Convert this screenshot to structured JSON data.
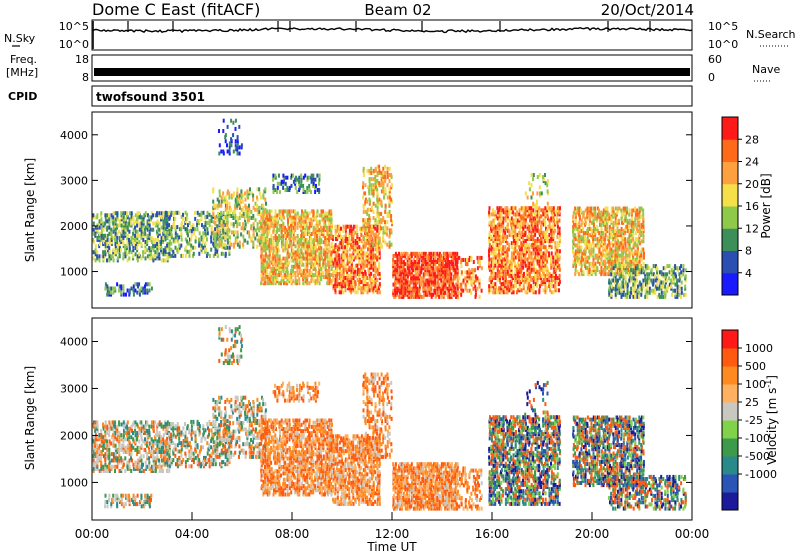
{
  "header": {
    "station": "Dome C East (fitACF)",
    "beam": "Beam 02",
    "date": "20/Oct/2014"
  },
  "noise_panel": {
    "left_label": "N.Sky",
    "left_top": "10^5",
    "left_bottom": "10^0",
    "right_label": "N.Search",
    "right_top": "10^5",
    "right_bottom": "10^0"
  },
  "freq_panel": {
    "left_label_1": "Freq.",
    "left_label_2": "[MHz]",
    "left_top": "18",
    "left_bottom": "8",
    "right_label": "Nave",
    "right_top": "60",
    "right_bottom": "0"
  },
  "cpid": {
    "label": "CPID",
    "value": "twofsound 3501"
  },
  "chart_data": [
    {
      "type": "heatmap",
      "panel": "power",
      "ylabel": "Slant Range [km]",
      "ylim": [
        200,
        4500
      ],
      "y_ticks": [
        1000,
        2000,
        3000,
        4000
      ],
      "x_ticks": [
        "00:00",
        "04:00",
        "08:00",
        "12:00",
        "16:00",
        "20:00",
        "00:00"
      ],
      "colorbar": {
        "label": "Power [dB]",
        "ticks": [
          "4",
          "8",
          "12",
          "16",
          "20",
          "24",
          "28"
        ],
        "colors": [
          "#1a1aff",
          "#2a4fb0",
          "#3d8f5a",
          "#8fc94a",
          "#f5e04a",
          "#ffa040",
          "#ff6a1a",
          "#ff1a1a"
        ]
      }
    },
    {
      "type": "heatmap",
      "panel": "velocity",
      "ylabel": "Slant Range [km]",
      "ylim": [
        200,
        4500
      ],
      "y_ticks": [
        1000,
        2000,
        3000,
        4000
      ],
      "x_ticks": [
        "00:00",
        "04:00",
        "08:00",
        "12:00",
        "16:00",
        "20:00",
        "00:00"
      ],
      "xlabel": "Time UT",
      "colorbar": {
        "label": "Velocity [m s",
        "label_sup": "-1",
        "label_end": "]",
        "ticks": [
          "1000",
          "500",
          "100",
          "25",
          "-25",
          "-100",
          "-500",
          "-1000"
        ],
        "colors": [
          "#1a1a9a",
          "#2a55b5",
          "#2a8a8a",
          "#3d9a4a",
          "#7fd24a",
          "#c8c8c0",
          "#ffb060",
          "#ff8a20",
          "#ff5a10",
          "#ff1a1a"
        ]
      }
    }
  ]
}
